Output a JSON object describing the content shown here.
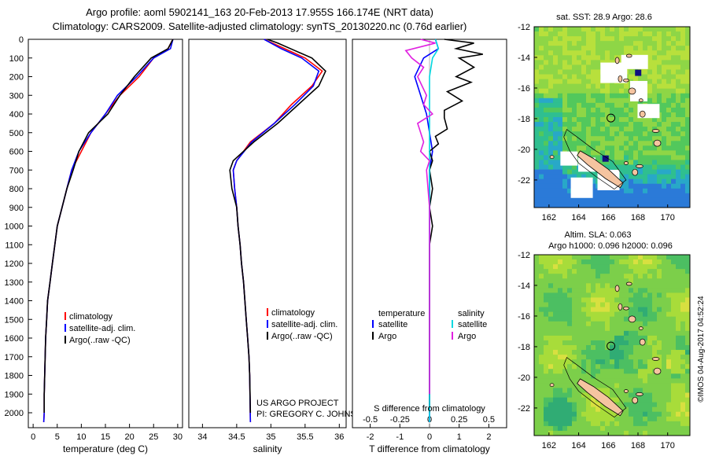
{
  "header": {
    "line1": "Argo profile: aoml 5902141_163 20-Feb-2013 17.955S 166.174E (NRT data)",
    "line2": "Climatology: CARS2009. Satellite-adjusted climatology: synTS_20130220.nc (0.76d earlier)"
  },
  "sst_map": {
    "title": "sat. SST: 28.9 Argo: 28.6"
  },
  "sla_map": {
    "title_line1": "Altim. SLA: 0.063",
    "title_line2": "Argo h1000: 0.096 h2000: 0.096"
  },
  "credit": "©IMOS 04-Aug-2017 04:52:24",
  "signature": {
    "line1": "US ARGO PROJECT",
    "line2": "PI: GREGORY C. JOHNSON"
  },
  "colors": {
    "climatology": "#ff0000",
    "satellite": "#0000ff",
    "argo": "#000000",
    "s_satellite": "#00d8e0",
    "s_argo": "#e020e0"
  },
  "chart_data": [
    {
      "id": "temperature",
      "type": "line",
      "xlabel": "temperature (deg C)",
      "ylabel": "",
      "xlim": [
        -1,
        31
      ],
      "ylim": [
        2080,
        0
      ],
      "xticks": [
        "0",
        "5",
        "10",
        "15",
        "20",
        "25",
        "30"
      ],
      "xtick_values": [
        0,
        5,
        10,
        15,
        20,
        25,
        30
      ],
      "yticks": [
        "0",
        "100",
        "200",
        "300",
        "400",
        "500",
        "600",
        "700",
        "800",
        "900",
        "1000",
        "1100",
        "1200",
        "1300",
        "1400",
        "1500",
        "1600",
        "1700",
        "1800",
        "1900",
        "2000"
      ],
      "ytick_values": [
        0,
        100,
        200,
        300,
        400,
        500,
        600,
        700,
        800,
        900,
        1000,
        1100,
        1200,
        1300,
        1400,
        1500,
        1600,
        1700,
        1800,
        1900,
        2000
      ],
      "legend": [
        "climatology",
        "satellite-adj. clim.",
        "Argo(..raw -QC)"
      ],
      "series": [
        {
          "name": "climatology",
          "color": "#ff0000",
          "x": [
            29,
            28,
            25,
            22,
            18,
            15,
            12,
            10,
            8,
            7,
            6,
            5,
            4.5,
            4,
            3.5,
            3,
            2.8,
            2.6,
            2.5,
            2.4,
            2.3,
            2.3,
            2.2
          ],
          "y": [
            0,
            50,
            100,
            200,
            300,
            400,
            500,
            600,
            700,
            800,
            900,
            1000,
            1100,
            1200,
            1300,
            1400,
            1500,
            1600,
            1700,
            1800,
            1900,
            2000,
            2050
          ]
        },
        {
          "name": "satellite-adj. clim.",
          "color": "#0000ff",
          "x": [
            29,
            28.5,
            25,
            21.5,
            17.5,
            15,
            12,
            9.5,
            8,
            7,
            6,
            5,
            4.5,
            4,
            3.5,
            3,
            2.8,
            2.6,
            2.5,
            2.4,
            2.3,
            2.3,
            2.2
          ],
          "y": [
            0,
            50,
            100,
            200,
            300,
            400,
            500,
            600,
            700,
            800,
            900,
            1000,
            1100,
            1200,
            1300,
            1400,
            1500,
            1600,
            1700,
            1800,
            1900,
            2000,
            2050
          ]
        },
        {
          "name": "Argo(..raw -QC)",
          "color": "#000000",
          "x": [
            29,
            28,
            24.5,
            21,
            18,
            15.5,
            11.5,
            9.5,
            8.3,
            7,
            6,
            5,
            4.5,
            4,
            3.5,
            3,
            2.8,
            2.6,
            2.5,
            2.4,
            2.3,
            2.3
          ],
          "y": [
            0,
            50,
            100,
            200,
            300,
            400,
            500,
            600,
            700,
            800,
            900,
            1000,
            1100,
            1200,
            1300,
            1400,
            1500,
            1600,
            1700,
            1800,
            1900,
            2000
          ]
        }
      ]
    },
    {
      "id": "salinity",
      "type": "line",
      "xlabel": "salinity",
      "ylabel": "",
      "xlim": [
        33.8,
        36.1
      ],
      "ylim": [
        2080,
        0
      ],
      "xticks": [
        "34",
        "34.5",
        "35",
        "35.5",
        "36"
      ],
      "xtick_values": [
        34,
        34.5,
        35,
        35.5,
        36
      ],
      "legend": [
        "climatology",
        "satellite-adj. clim.",
        "Argo(..raw -QC)"
      ],
      "series": [
        {
          "name": "climatology",
          "color": "#ff0000",
          "x": [
            34.9,
            35.2,
            35.5,
            35.75,
            35.6,
            35.3,
            35.05,
            34.7,
            34.5,
            34.45,
            34.47,
            34.5,
            34.52,
            34.55,
            34.57,
            34.6,
            34.62,
            34.64,
            34.66,
            34.68,
            34.69,
            34.7
          ],
          "y": [
            0,
            50,
            100,
            170,
            250,
            350,
            450,
            550,
            650,
            700,
            800,
            900,
            1000,
            1100,
            1200,
            1300,
            1400,
            1500,
            1600,
            1700,
            1800,
            2050
          ]
        },
        {
          "name": "satellite-adj. clim.",
          "color": "#0000ff",
          "x": [
            34.9,
            35.15,
            35.45,
            35.7,
            35.62,
            35.35,
            35.05,
            34.72,
            34.5,
            34.45,
            34.47,
            34.5,
            34.52,
            34.55,
            34.57,
            34.6,
            34.62,
            34.64,
            34.66,
            34.68,
            34.69,
            34.7
          ],
          "y": [
            0,
            50,
            100,
            170,
            250,
            350,
            450,
            550,
            650,
            700,
            800,
            900,
            1000,
            1100,
            1200,
            1300,
            1400,
            1500,
            1600,
            1700,
            1800,
            2050
          ]
        },
        {
          "name": "Argo(..raw -QC)",
          "color": "#000000",
          "x": [
            34.95,
            35.1,
            35.35,
            35.6,
            35.8,
            35.7,
            35.4,
            35.1,
            34.75,
            34.45,
            34.4,
            34.43,
            34.5,
            34.52,
            34.55,
            34.57,
            34.6,
            34.62,
            34.64,
            34.66,
            34.68,
            34.69,
            34.7
          ],
          "y": [
            0,
            20,
            60,
            100,
            170,
            250,
            350,
            450,
            550,
            650,
            700,
            800,
            900,
            1000,
            1100,
            1200,
            1300,
            1400,
            1500,
            1600,
            1700,
            1800,
            2000
          ]
        }
      ]
    },
    {
      "id": "difference",
      "type": "line",
      "xlabel": "T difference from climatology",
      "xlabel_top": "S difference from climatology",
      "xlim": [
        -2.6,
        2.6
      ],
      "ylim": [
        2080,
        0
      ],
      "xticks": [
        "-2",
        "-1",
        "0",
        "1",
        "2"
      ],
      "xtick_values": [
        -2,
        -1,
        0,
        1,
        2
      ],
      "s_ticks": [
        "-0.5",
        "-0.25",
        "0",
        "0.25",
        "0.5"
      ],
      "s_tick_values": [
        -0.5,
        -0.25,
        0,
        0.25,
        0.5
      ],
      "legend_temperature": [
        "temperature",
        "satellite",
        "Argo"
      ],
      "legend_salinity": [
        "salinity",
        "satellite",
        "Argo"
      ],
      "series": [
        {
          "name": "T satellite",
          "color": "#0000ff",
          "x": [
            0.2,
            0.3,
            -0.2,
            -0.5,
            -0.3,
            -0.1,
            0,
            0.1,
            0,
            0,
            0,
            0,
            0,
            0,
            0,
            0,
            0,
            0,
            0,
            0,
            0
          ],
          "y": [
            0,
            50,
            100,
            200,
            300,
            400,
            500,
            600,
            700,
            800,
            900,
            1000,
            1100,
            1200,
            1300,
            1400,
            1500,
            1600,
            1700,
            1800,
            2050
          ]
        },
        {
          "name": "T Argo",
          "color": "#000000",
          "x": [
            0.5,
            1.5,
            0.9,
            1.8,
            1.0,
            1.5,
            0.9,
            1.4,
            0.6,
            1.1,
            0.5,
            0.5,
            0.6,
            0.2,
            0.3,
            0,
            0.1,
            0,
            0.1,
            0,
            0.1,
            0,
            0,
            0,
            0,
            0,
            0
          ],
          "y": [
            0,
            20,
            50,
            80,
            100,
            150,
            200,
            230,
            280,
            330,
            380,
            420,
            480,
            520,
            560,
            600,
            650,
            700,
            800,
            900,
            1000,
            1100,
            1300,
            1500,
            1700,
            1900,
            2000
          ]
        },
        {
          "name": "S satellite",
          "color": "#00d8e0",
          "x": [
            0.2,
            0.3,
            0.1,
            0,
            0,
            0,
            0,
            0,
            0,
            0,
            0,
            0,
            0,
            0
          ],
          "y": [
            0,
            50,
            100,
            200,
            300,
            400,
            500,
            700,
            900,
            1100,
            1300,
            1500,
            1800,
            2050
          ]
        },
        {
          "name": "S Argo",
          "color": "#e020e0",
          "x": [
            -0.3,
            0.2,
            -0.8,
            -0.6,
            -0.2,
            -0.4,
            -0.1,
            -0.2,
            0.1,
            -0.4,
            -0.2,
            -0.3,
            0,
            -0.1,
            0,
            0,
            0
          ],
          "y": [
            0,
            20,
            60,
            100,
            150,
            200,
            300,
            350,
            400,
            450,
            550,
            600,
            650,
            700,
            900,
            1200,
            1900
          ]
        }
      ]
    },
    {
      "id": "sst_map",
      "type": "heatmap",
      "title": "sat. SST: 28.9 Argo: 28.6",
      "xticks": [
        "162",
        "164",
        "166",
        "168",
        "170"
      ],
      "yticks": [
        "-12",
        "-14",
        "-16",
        "-18",
        "-20",
        "-22"
      ],
      "xlim": [
        161,
        171.5
      ],
      "ylim": [
        -23.8,
        -12
      ],
      "argo_position": {
        "lon": 166.174,
        "lat": -17.955
      }
    },
    {
      "id": "sla_map",
      "type": "heatmap",
      "title": "Altim. SLA: 0.063",
      "subtitle": "Argo h1000: 0.096 h2000: 0.096",
      "xticks": [
        "162",
        "164",
        "166",
        "168",
        "170"
      ],
      "yticks": [
        "-12",
        "-14",
        "-16",
        "-18",
        "-20",
        "-22"
      ],
      "xlim": [
        161,
        171.5
      ],
      "ylim": [
        -23.8,
        -12
      ],
      "argo_position": {
        "lon": 166.174,
        "lat": -17.955
      }
    }
  ]
}
